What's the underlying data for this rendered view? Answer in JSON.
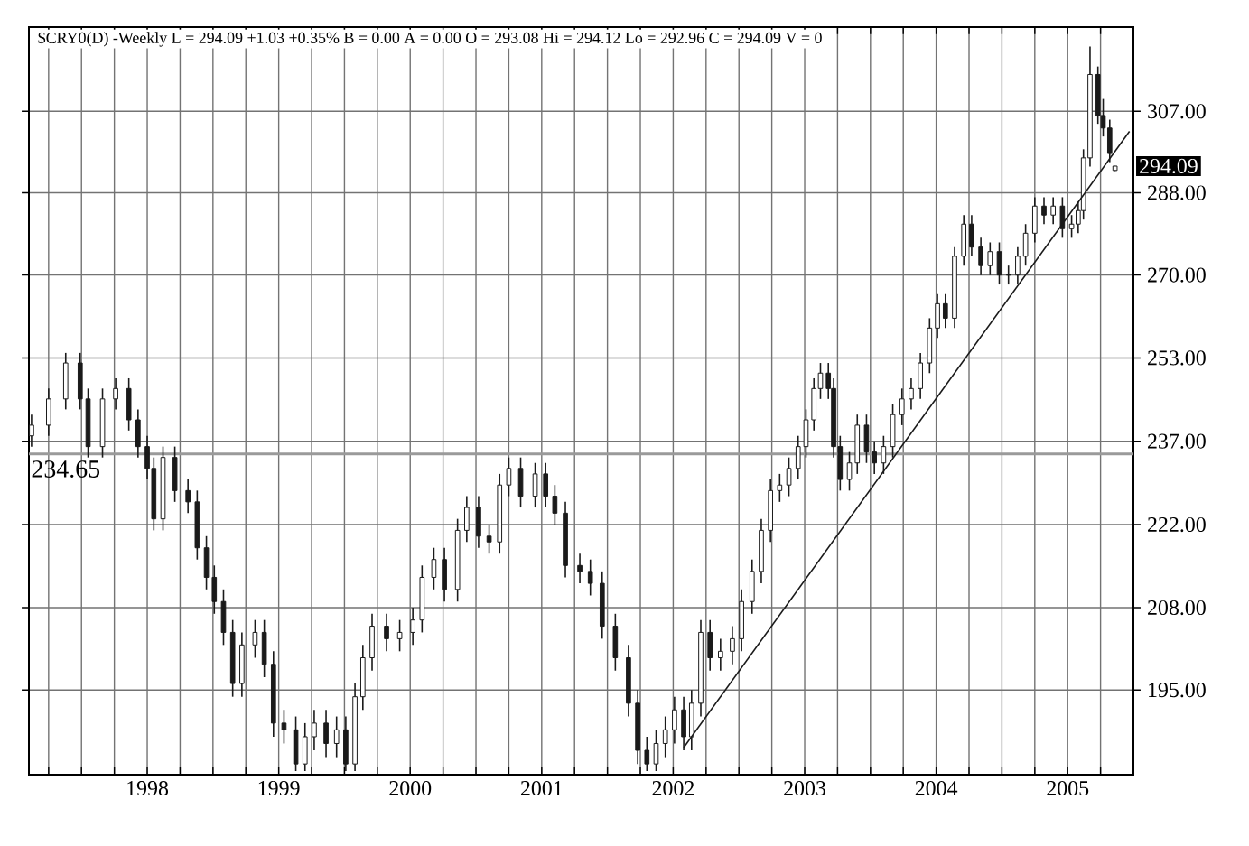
{
  "chart_data": {
    "type": "candlestick",
    "title": "$CRY0(D) -Weekly  L = 294.09  +1.03  +0.35%  B = 0.00  A = 0.00  O = 293.08  Hi = 294.12  Lo = 292.96  C = 294.09  V = 0",
    "color": "#1a1a1a",
    "x": [
      1997.12,
      1997.25,
      1997.38,
      1997.49,
      1997.55,
      1997.66,
      1997.76,
      1997.86,
      1997.93,
      1998.0,
      1998.05,
      1998.12,
      1998.21,
      1998.31,
      1998.38,
      1998.45,
      1998.51,
      1998.58,
      1998.65,
      1998.72,
      1998.82,
      1998.89,
      1998.96,
      1999.04,
      1999.13,
      1999.2,
      1999.27,
      1999.36,
      1999.44,
      1999.51,
      1999.58,
      1999.64,
      1999.71,
      1999.82,
      1999.92,
      2000.02,
      2000.09,
      2000.18,
      2000.26,
      2000.36,
      2000.43,
      2000.52,
      2000.6,
      2000.68,
      2000.75,
      2000.84,
      2000.95,
      2001.03,
      2001.1,
      2001.18,
      2001.29,
      2001.37,
      2001.46,
      2001.56,
      2001.66,
      2001.73,
      2001.8,
      2001.87,
      2001.94,
      2002.01,
      2002.08,
      2002.14,
      2002.21,
      2002.28,
      2002.36,
      2002.45,
      2002.52,
      2002.6,
      2002.67,
      2002.74,
      2002.81,
      2002.88,
      2002.95,
      2003.01,
      2003.07,
      2003.12,
      2003.18,
      2003.22,
      2003.27,
      2003.34,
      2003.4,
      2003.47,
      2003.53,
      2003.6,
      2003.67,
      2003.74,
      2003.81,
      2003.88,
      2003.95,
      2004.01,
      2004.07,
      2004.14,
      2004.21,
      2004.27,
      2004.34,
      2004.41,
      2004.48,
      2004.55,
      2004.62,
      2004.68,
      2004.75,
      2004.82,
      2004.89,
      2004.96,
      2005.03,
      2005.08,
      2005.12,
      2005.17,
      2005.23,
      2005.27,
      2005.32,
      2005.36
    ],
    "ohlc": [
      [
        238,
        242,
        236,
        240
      ],
      [
        240,
        247,
        238,
        245
      ],
      [
        245,
        254,
        243,
        252
      ],
      [
        252,
        254,
        243,
        245
      ],
      [
        245,
        247,
        234,
        236
      ],
      [
        236,
        247,
        234,
        245
      ],
      [
        245,
        249,
        243,
        247
      ],
      [
        247,
        249,
        239,
        241
      ],
      [
        241,
        243,
        234,
        236
      ],
      [
        236,
        238,
        230,
        232
      ],
      [
        232,
        234,
        221,
        223
      ],
      [
        223,
        236,
        221,
        234
      ],
      [
        234,
        236,
        226,
        228
      ],
      [
        228,
        230,
        224,
        226
      ],
      [
        226,
        228,
        216,
        218
      ],
      [
        218,
        220,
        211,
        213
      ],
      [
        213,
        215,
        207,
        209
      ],
      [
        209,
        211,
        202,
        204
      ],
      [
        204,
        206,
        194,
        196
      ],
      [
        196,
        204,
        194,
        202
      ],
      [
        202,
        206,
        200,
        204
      ],
      [
        204,
        206,
        197,
        199
      ],
      [
        199,
        201,
        188,
        190
      ],
      [
        190,
        192,
        187,
        189
      ],
      [
        189,
        191,
        183,
        184
      ],
      [
        184,
        190,
        183,
        188
      ],
      [
        188,
        192,
        186,
        190
      ],
      [
        190,
        192,
        185,
        187
      ],
      [
        187,
        191,
        185,
        189
      ],
      [
        189,
        191,
        183,
        184
      ],
      [
        184,
        196,
        183,
        194
      ],
      [
        194,
        202,
        192,
        200
      ],
      [
        200,
        207,
        198,
        205
      ],
      [
        205,
        207,
        201,
        203
      ],
      [
        203,
        206,
        201,
        204
      ],
      [
        204,
        208,
        202,
        206
      ],
      [
        206,
        215,
        204,
        213
      ],
      [
        213,
        218,
        211,
        216
      ],
      [
        216,
        218,
        209,
        211
      ],
      [
        211,
        223,
        209,
        221
      ],
      [
        221,
        227,
        219,
        225
      ],
      [
        225,
        227,
        218,
        220
      ],
      [
        220,
        222,
        217,
        219
      ],
      [
        219,
        231,
        217,
        229
      ],
      [
        229,
        234,
        227,
        232
      ],
      [
        232,
        234,
        225,
        227
      ],
      [
        227,
        233,
        225,
        231
      ],
      [
        231,
        233,
        225,
        227
      ],
      [
        227,
        229,
        222,
        224
      ],
      [
        224,
        226,
        213,
        215
      ],
      [
        215,
        217,
        212,
        214
      ],
      [
        214,
        216,
        210,
        212
      ],
      [
        212,
        214,
        203,
        205
      ],
      [
        205,
        207,
        198,
        200
      ],
      [
        200,
        202,
        191,
        193
      ],
      [
        193,
        195,
        184,
        186
      ],
      [
        186,
        188,
        183,
        184
      ],
      [
        184,
        189,
        183,
        187
      ],
      [
        187,
        191,
        185,
        189
      ],
      [
        189,
        194,
        187,
        192
      ],
      [
        192,
        194,
        186,
        188
      ],
      [
        188,
        195,
        186,
        193
      ],
      [
        193,
        206,
        191,
        204
      ],
      [
        204,
        206,
        198,
        200
      ],
      [
        200,
        203,
        198,
        201
      ],
      [
        201,
        205,
        199,
        203
      ],
      [
        203,
        211,
        201,
        209
      ],
      [
        209,
        216,
        207,
        214
      ],
      [
        214,
        223,
        212,
        221
      ],
      [
        221,
        230,
        219,
        228
      ],
      [
        228,
        231,
        226,
        229
      ],
      [
        229,
        234,
        227,
        232
      ],
      [
        232,
        238,
        230,
        236
      ],
      [
        236,
        243,
        234,
        241
      ],
      [
        241,
        249,
        239,
        247
      ],
      [
        247,
        252,
        245,
        250
      ],
      [
        250,
        252,
        245,
        247
      ],
      [
        247,
        249,
        234,
        236
      ],
      [
        236,
        238,
        228,
        230
      ],
      [
        230,
        235,
        228,
        233
      ],
      [
        233,
        242,
        231,
        240
      ],
      [
        240,
        242,
        233,
        235
      ],
      [
        235,
        237,
        231,
        233
      ],
      [
        233,
        238,
        231,
        236
      ],
      [
        236,
        244,
        234,
        242
      ],
      [
        242,
        247,
        240,
        245
      ],
      [
        245,
        249,
        243,
        247
      ],
      [
        247,
        254,
        245,
        252
      ],
      [
        252,
        261,
        250,
        259
      ],
      [
        259,
        266,
        257,
        264
      ],
      [
        264,
        266,
        259,
        261
      ],
      [
        261,
        276,
        259,
        274
      ],
      [
        274,
        283,
        272,
        281
      ],
      [
        281,
        283,
        274,
        276
      ],
      [
        276,
        278,
        270,
        272
      ],
      [
        272,
        277,
        270,
        275
      ],
      [
        275,
        277,
        268,
        270
      ],
      [
        270,
        272,
        268,
        270
      ],
      [
        270,
        276,
        268,
        274
      ],
      [
        274,
        281,
        272,
        279
      ],
      [
        279,
        287,
        277,
        285
      ],
      [
        285,
        287,
        281,
        283
      ],
      [
        283,
        287,
        281,
        285
      ],
      [
        285,
        287,
        278,
        280
      ],
      [
        280,
        283,
        278,
        281
      ],
      [
        281,
        286,
        279,
        284
      ],
      [
        284,
        298,
        282,
        296
      ],
      [
        296,
        323,
        294,
        316
      ],
      [
        316,
        318,
        304,
        306
      ],
      [
        306,
        310,
        301,
        303
      ],
      [
        303,
        305,
        295,
        297
      ],
      [
        293.08,
        294.12,
        292.96,
        294.09
      ]
    ],
    "series": [
      {
        "type": "line",
        "x": [
          2002.08,
          2005.47
        ],
        "values": [
          186.4,
          302.2
        ],
        "color": "#1a1a1a"
      }
    ],
    "log": true,
    "grid": true,
    "xlim": [
      1997.1,
      2005.5
    ],
    "ylim": [
      182.5,
      328
    ],
    "xticks": [
      {
        "value": 1997.25,
        "label": null
      },
      {
        "value": 1997.5,
        "label": null
      },
      {
        "value": 1997.75,
        "label": null
      },
      {
        "value": 1998,
        "label": "1998"
      },
      {
        "value": 1998.25,
        "label": null
      },
      {
        "value": 1998.5,
        "label": null
      },
      {
        "value": 1998.75,
        "label": null
      },
      {
        "value": 1999,
        "label": "1999"
      },
      {
        "value": 1999.25,
        "label": null
      },
      {
        "value": 1999.5,
        "label": null
      },
      {
        "value": 1999.75,
        "label": null
      },
      {
        "value": 2000,
        "label": "2000"
      },
      {
        "value": 2000.25,
        "label": null
      },
      {
        "value": 2000.5,
        "label": null
      },
      {
        "value": 2000.75,
        "label": null
      },
      {
        "value": 2001,
        "label": "2001"
      },
      {
        "value": 2001.25,
        "label": null
      },
      {
        "value": 2001.5,
        "label": null
      },
      {
        "value": 2001.75,
        "label": null
      },
      {
        "value": 2002,
        "label": "2002"
      },
      {
        "value": 2002.25,
        "label": null
      },
      {
        "value": 2002.5,
        "label": null
      },
      {
        "value": 2002.75,
        "label": null
      },
      {
        "value": 2003,
        "label": "2003"
      },
      {
        "value": 2003.25,
        "label": null
      },
      {
        "value": 2003.5,
        "label": null
      },
      {
        "value": 2003.75,
        "label": null
      },
      {
        "value": 2004,
        "label": "2004"
      },
      {
        "value": 2004.25,
        "label": null
      },
      {
        "value": 2004.5,
        "label": null
      },
      {
        "value": 2004.75,
        "label": null
      },
      {
        "value": 2005,
        "label": "2005"
      },
      {
        "value": 2005.25,
        "label": null
      }
    ],
    "yticks": [
      {
        "value": 195,
        "label": "195.00"
      },
      {
        "value": 208,
        "label": "208.00"
      },
      {
        "value": 222,
        "label": "222.00"
      },
      {
        "value": 237,
        "label": "237.00"
      },
      {
        "value": 253,
        "label": "253.00"
      },
      {
        "value": 270,
        "label": "270.00"
      },
      {
        "value": 288,
        "label": "288.00"
      },
      {
        "value": 307,
        "label": "307.00"
      }
    ],
    "ref_lines": [
      {
        "axis": "y",
        "value": 234.65,
        "label": "234.65",
        "color": "#9a9a9a"
      }
    ],
    "annotations": [
      {
        "text": "294.09",
        "x": 2005.36,
        "y": 294.09
      }
    ]
  }
}
